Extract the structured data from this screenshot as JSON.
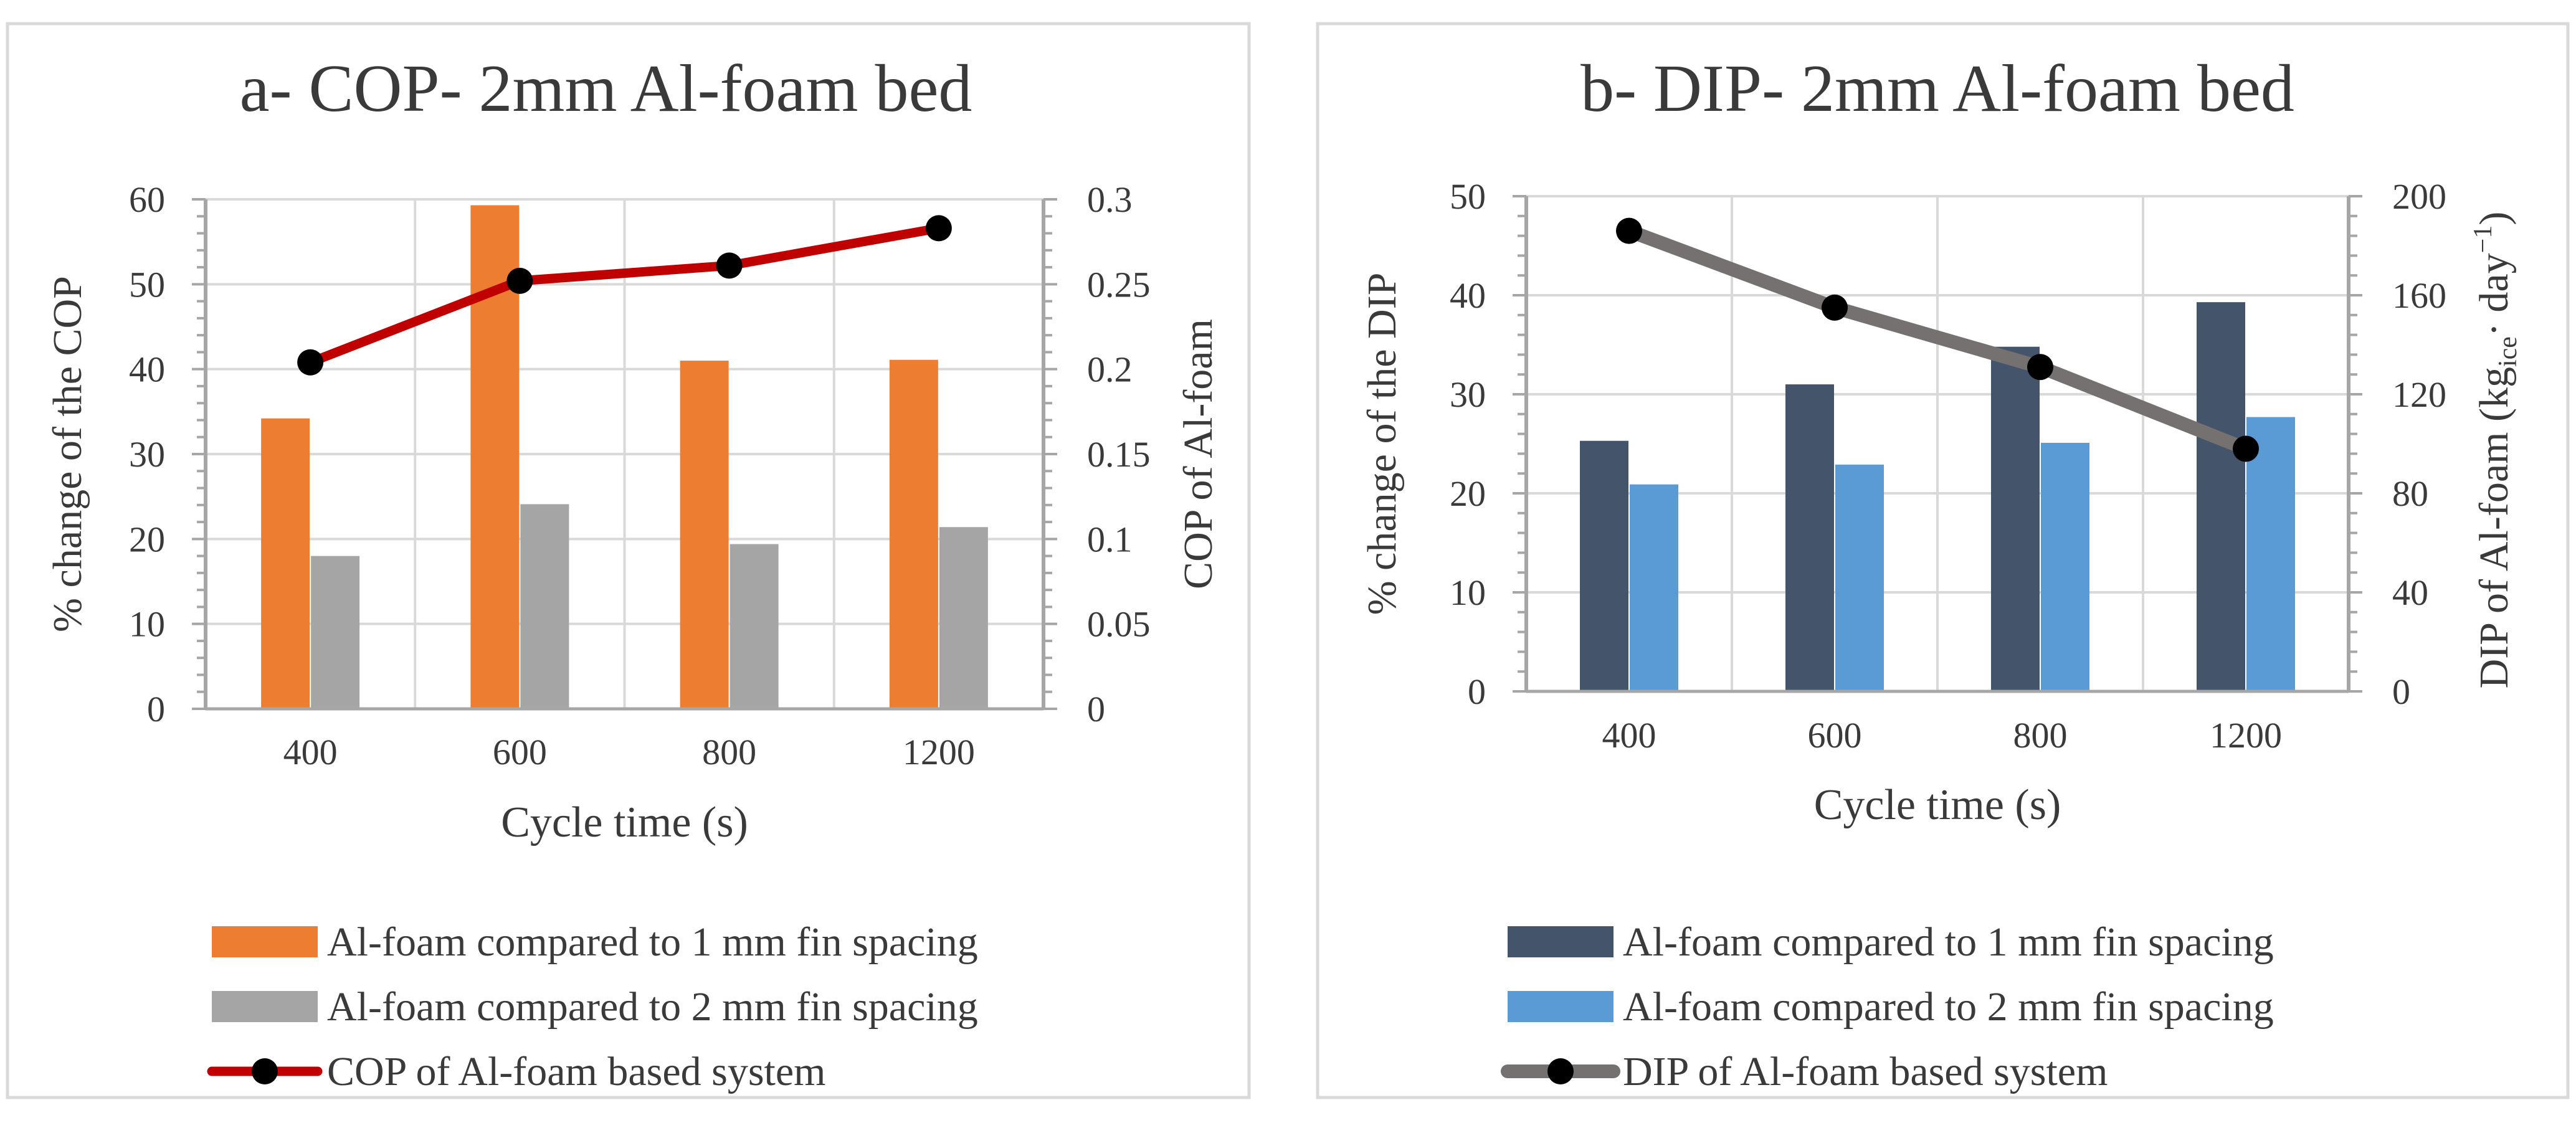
{
  "chart_data": [
    {
      "type": "bar+line",
      "title": "a- COP- 2mm Al-foam bed",
      "xlabel": "Cycle time (s)",
      "ylabel_left": "% change of the COP",
      "ylabel_right": "COP of Al-foam",
      "categories": [
        "400",
        "600",
        "800",
        "1200"
      ],
      "ylim_left": [
        0,
        60
      ],
      "yticks_left": [
        "0",
        "10",
        "20",
        "30",
        "40",
        "50",
        "60"
      ],
      "ylim_right": [
        0,
        0.3
      ],
      "yticks_right": [
        "0",
        "0.05",
        "0.1",
        "0.15",
        "0.2",
        "0.25",
        "0.3"
      ],
      "grid": true,
      "legend_position": "bottom",
      "bar_series": [
        {
          "name": "Al-foam compared to 1 mm fin spacing",
          "color": "#ED7D31",
          "values": [
            34.2,
            59.3,
            41.0,
            41.1
          ]
        },
        {
          "name": "Al-foam compared to 2 mm fin spacing",
          "color": "#A5A5A5",
          "values": [
            18.0,
            24.1,
            19.4,
            21.4
          ]
        }
      ],
      "line_series": {
        "name": "COP of Al-foam based system",
        "color": "#C00000",
        "marker_color": "#000000",
        "axis": "right",
        "values": [
          0.204,
          0.252,
          0.261,
          0.283
        ]
      }
    },
    {
      "type": "bar+line",
      "title": "b- DIP- 2mm Al-foam bed",
      "xlabel": "Cycle time (s)",
      "ylabel_left": "% change of the DIP",
      "ylabel_right_prefix": "DIP of Al-foam (kg",
      "ylabel_right_sub": "ice",
      "ylabel_right_mid": "· day",
      "ylabel_right_sup": "−1",
      "ylabel_right_suffix": ")",
      "categories": [
        "400",
        "600",
        "800",
        "1200"
      ],
      "ylim_left": [
        0,
        50
      ],
      "yticks_left": [
        "0",
        "10",
        "20",
        "30",
        "40",
        "50"
      ],
      "ylim_right": [
        0,
        200
      ],
      "yticks_right": [
        "0",
        "40",
        "80",
        "120",
        "160",
        "200"
      ],
      "grid": true,
      "legend_position": "bottom",
      "bar_series": [
        {
          "name": "Al-foam compared to 1 mm fin spacing",
          "color": "#44546A",
          "values": [
            25.3,
            31.0,
            34.8,
            39.3
          ]
        },
        {
          "name": "Al-foam compared to 2 mm fin spacing",
          "color": "#5B9BD5",
          "values": [
            20.9,
            22.9,
            25.1,
            27.7
          ]
        }
      ],
      "line_series": {
        "name": "DIP of Al-foam based system",
        "color": "#767171",
        "marker_color": "#000000",
        "axis": "right",
        "values": [
          186,
          155,
          131,
          98
        ]
      }
    }
  ]
}
